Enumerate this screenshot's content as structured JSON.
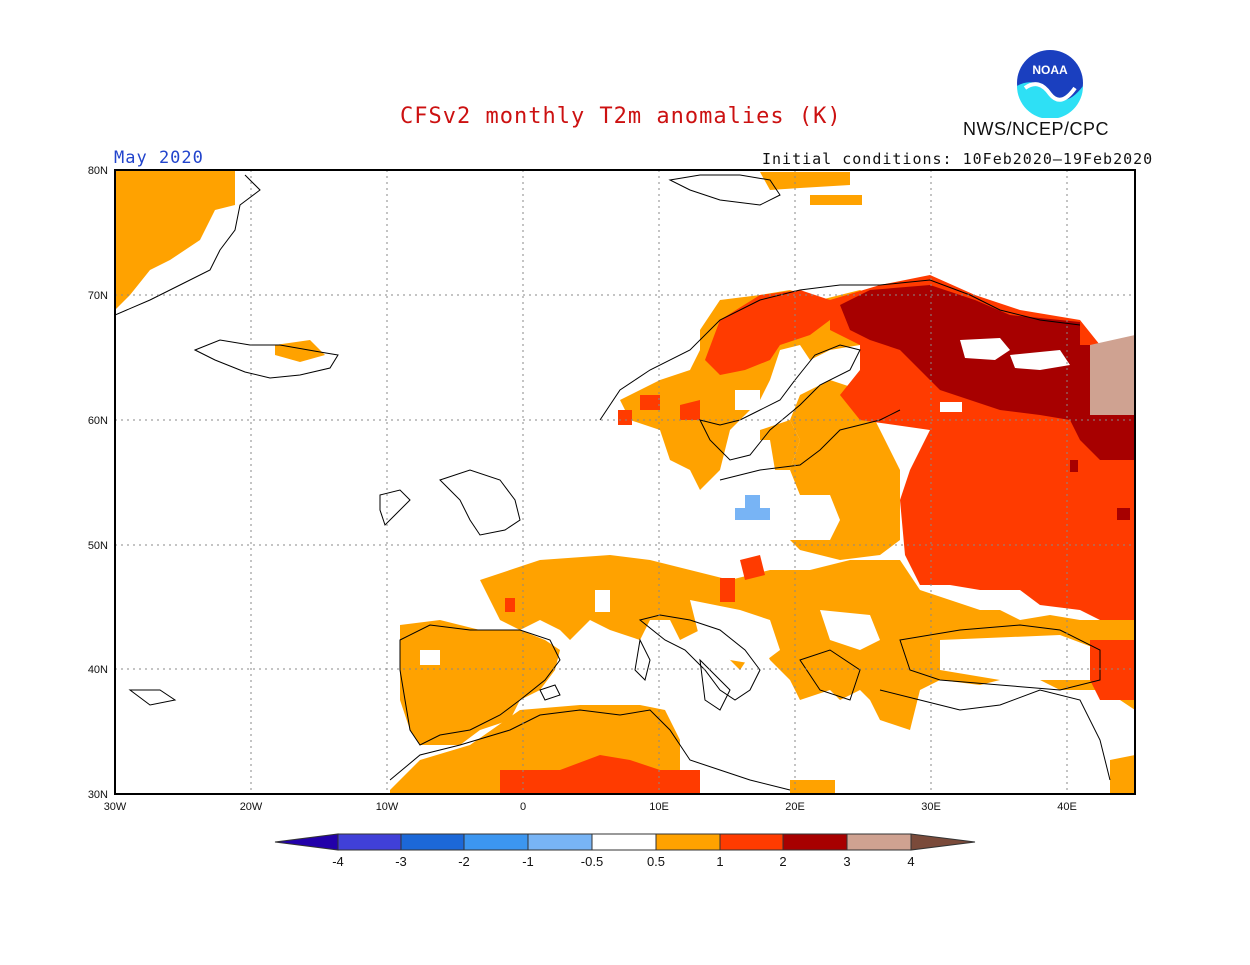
{
  "header": {
    "title": "CFSv2 monthly T2m anomalies (K)",
    "period": "May 2020",
    "initial_conditions": "Initial conditions: 10Feb2020–19Feb2020",
    "agency": "NWS/NCEP/CPC",
    "logo_text": "NOAA"
  },
  "map": {
    "lon_range": [
      -30,
      45
    ],
    "lat_range": [
      30,
      80
    ],
    "lon_ticks": [
      "30W",
      "20W",
      "10W",
      "0",
      "10E",
      "20E",
      "30E",
      "40E"
    ],
    "lat_ticks": [
      "30N",
      "40N",
      "50N",
      "60N",
      "70N",
      "80N"
    ],
    "grid": "dotted",
    "colors": {
      "anom_0_5_1": "#ffa200",
      "anom_1_2": "#ff3b00",
      "anom_2_3": "#a70000",
      "anom_3_4": "#cfa291",
      "anom_neg1_neg05": "#78b4f5"
    }
  },
  "colorbar": {
    "labels": [
      "-4",
      "-3",
      "-2",
      "-1",
      "-0.5",
      "0.5",
      "1",
      "2",
      "3",
      "4"
    ],
    "colors": [
      "#2200aa",
      "#4040d8",
      "#1c68d8",
      "#3c96f0",
      "#78b4f5",
      "#ffffff",
      "#ffa200",
      "#ff3b00",
      "#a70000",
      "#cfa291",
      "#7a4a3a"
    ]
  }
}
